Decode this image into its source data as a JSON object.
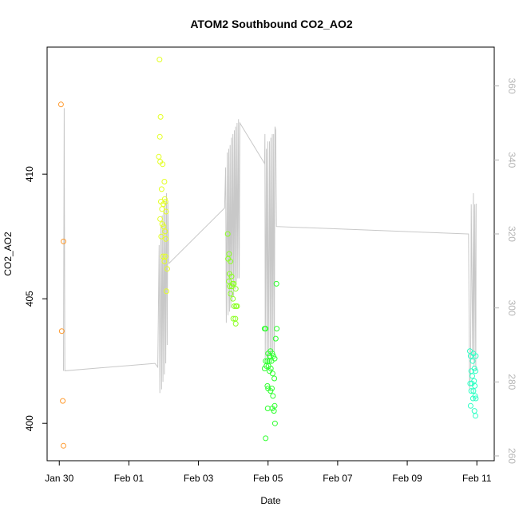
{
  "chart_data": {
    "type": "scatter",
    "title": "ATOM2 Southbound CO2_AO2",
    "xlabel": "Date",
    "ylabel": "CO2_AO2",
    "x_ticks": [
      "Jan 30",
      "Feb 01",
      "Feb 03",
      "Feb 05",
      "Feb 07",
      "Feb 09",
      "Feb 11"
    ],
    "x_tick_days": [
      0,
      2,
      4,
      6,
      8,
      10,
      12
    ],
    "xlim_days": [
      -0.35,
      12.5
    ],
    "ylim": [
      398.5,
      415.1
    ],
    "y_ticks": [
      400,
      405,
      410
    ],
    "y2_ticks": [
      260,
      280,
      300,
      320,
      340,
      360
    ],
    "y2lim": [
      258.7,
      370.5
    ],
    "grid": false,
    "legend": "none",
    "colors": {
      "line": "#c8c8c8",
      "right_axis": "#b5b5b5",
      "frame": "#000000"
    },
    "series": [
      {
        "color": "#ff9a2e",
        "points": [
          [
            0.05,
            412.8
          ],
          [
            0.12,
            407.3
          ],
          [
            0.07,
            403.7
          ],
          [
            0.1,
            400.9
          ],
          [
            0.12,
            399.1
          ]
        ]
      },
      {
        "color": "#e4ff24",
        "points": [
          [
            2.88,
            414.6
          ],
          [
            2.91,
            412.3
          ],
          [
            2.89,
            411.5
          ],
          [
            2.86,
            410.7
          ],
          [
            2.9,
            410.5
          ],
          [
            2.97,
            410.4
          ],
          [
            3.02,
            409.7
          ],
          [
            2.94,
            409.4
          ],
          [
            3.03,
            409.0
          ],
          [
            2.92,
            408.9
          ],
          [
            2.99,
            408.8
          ],
          [
            3.05,
            408.9
          ],
          [
            2.95,
            408.6
          ],
          [
            3.07,
            408.5
          ],
          [
            2.9,
            408.2
          ],
          [
            2.96,
            408.0
          ],
          [
            3.0,
            407.9
          ],
          [
            3.04,
            407.7
          ],
          [
            2.93,
            407.5
          ],
          [
            3.06,
            407.4
          ],
          [
            2.98,
            406.7
          ],
          [
            3.05,
            406.7
          ],
          [
            3.02,
            406.5
          ],
          [
            3.1,
            406.2
          ],
          [
            3.08,
            405.3
          ]
        ]
      },
      {
        "color": "#8cff24",
        "points": [
          [
            4.84,
            407.6
          ],
          [
            4.88,
            406.8
          ],
          [
            4.85,
            406.6
          ],
          [
            4.92,
            406.5
          ],
          [
            4.89,
            406.0
          ],
          [
            4.95,
            405.9
          ],
          [
            4.87,
            405.7
          ],
          [
            4.98,
            405.6
          ],
          [
            5.02,
            405.6
          ],
          [
            4.9,
            405.5
          ],
          [
            4.96,
            405.5
          ],
          [
            5.07,
            405.4
          ],
          [
            4.92,
            405.2
          ],
          [
            4.99,
            405.0
          ],
          [
            5.03,
            404.7
          ],
          [
            5.08,
            404.7
          ],
          [
            5.11,
            404.7
          ],
          [
            5.0,
            404.2
          ],
          [
            5.06,
            404.2
          ],
          [
            5.07,
            404.0
          ]
        ]
      },
      {
        "color": "#2eff2e",
        "points": [
          [
            5.9,
            403.8
          ],
          [
            5.93,
            403.8
          ],
          [
            6.24,
            405.6
          ],
          [
            6.25,
            403.8
          ],
          [
            6.22,
            403.4
          ],
          [
            6.0,
            402.8
          ],
          [
            6.07,
            402.9
          ],
          [
            6.12,
            402.8
          ],
          [
            6.05,
            402.7
          ],
          [
            6.15,
            402.7
          ],
          [
            6.19,
            402.6
          ],
          [
            5.93,
            402.5
          ],
          [
            5.98,
            402.5
          ],
          [
            6.03,
            402.5
          ],
          [
            6.1,
            402.5
          ],
          [
            5.95,
            402.3
          ],
          [
            6.01,
            402.3
          ],
          [
            5.9,
            402.2
          ],
          [
            6.08,
            402.2
          ],
          [
            6.04,
            402.1
          ],
          [
            6.13,
            402.0
          ],
          [
            6.18,
            401.8
          ],
          [
            5.98,
            401.5
          ],
          [
            6.0,
            401.4
          ],
          [
            6.11,
            401.4
          ],
          [
            6.07,
            401.3
          ],
          [
            6.14,
            401.1
          ],
          [
            6.19,
            400.7
          ],
          [
            5.99,
            400.6
          ],
          [
            6.17,
            400.5
          ],
          [
            6.12,
            400.6
          ],
          [
            6.2,
            400.0
          ],
          [
            5.93,
            399.4
          ]
        ]
      },
      {
        "color": "#2effc4",
        "points": [
          [
            11.8,
            402.9
          ],
          [
            11.9,
            402.8
          ],
          [
            11.82,
            402.7
          ],
          [
            11.97,
            402.7
          ],
          [
            11.88,
            402.5
          ],
          [
            11.93,
            402.2
          ],
          [
            11.84,
            402.1
          ],
          [
            11.96,
            402.1
          ],
          [
            11.87,
            401.9
          ],
          [
            11.92,
            401.7
          ],
          [
            11.81,
            401.6
          ],
          [
            11.86,
            401.6
          ],
          [
            11.94,
            401.5
          ],
          [
            11.84,
            401.3
          ],
          [
            11.9,
            401.3
          ],
          [
            11.95,
            401.1
          ],
          [
            11.89,
            401.0
          ],
          [
            11.97,
            401.0
          ],
          [
            11.82,
            400.7
          ],
          [
            11.93,
            400.5
          ],
          [
            11.96,
            400.3
          ]
        ]
      }
    ],
    "line_points": [
      [
        0.12,
        283
      ],
      [
        0.14,
        354
      ],
      [
        0.16,
        283
      ],
      [
        2.75,
        285
      ],
      [
        2.83,
        284
      ],
      [
        2.87,
        317
      ],
      [
        2.89,
        277
      ],
      [
        2.92,
        322
      ],
      [
        2.94,
        278
      ],
      [
        2.96,
        325
      ],
      [
        2.98,
        280
      ],
      [
        3.0,
        326
      ],
      [
        3.02,
        282
      ],
      [
        3.04,
        329
      ],
      [
        3.06,
        285
      ],
      [
        3.08,
        331
      ],
      [
        3.1,
        290
      ],
      [
        3.12,
        329
      ],
      [
        3.15,
        312
      ],
      [
        4.75,
        327
      ],
      [
        4.78,
        338
      ],
      [
        4.8,
        296
      ],
      [
        4.83,
        342
      ],
      [
        4.85,
        298
      ],
      [
        4.87,
        343
      ],
      [
        4.89,
        299
      ],
      [
        4.91,
        344
      ],
      [
        4.93,
        300
      ],
      [
        4.95,
        346
      ],
      [
        4.97,
        302
      ],
      [
        4.99,
        347
      ],
      [
        5.01,
        303
      ],
      [
        5.03,
        348
      ],
      [
        5.05,
        305
      ],
      [
        5.07,
        349
      ],
      [
        5.09,
        307
      ],
      [
        5.11,
        350
      ],
      [
        5.13,
        308
      ],
      [
        5.15,
        351
      ],
      [
        5.17,
        308
      ],
      [
        5.19,
        350
      ],
      [
        5.9,
        339
      ],
      [
        5.91,
        347
      ],
      [
        5.92,
        286
      ],
      [
        5.95,
        343
      ],
      [
        5.97,
        285
      ],
      [
        5.99,
        345
      ],
      [
        6.01,
        286
      ],
      [
        6.04,
        345
      ],
      [
        6.06,
        287
      ],
      [
        6.08,
        346
      ],
      [
        6.1,
        287
      ],
      [
        6.12,
        347
      ],
      [
        6.14,
        288
      ],
      [
        6.16,
        347
      ],
      [
        6.18,
        288
      ],
      [
        6.2,
        349
      ],
      [
        6.22,
        348
      ],
      [
        6.24,
        322
      ],
      [
        11.73,
        320
      ],
      [
        11.76,
        320
      ],
      [
        11.79,
        278
      ],
      [
        11.82,
        284
      ],
      [
        11.84,
        328
      ],
      [
        11.88,
        286
      ],
      [
        11.9,
        331
      ],
      [
        11.92,
        284
      ],
      [
        11.94,
        328
      ],
      [
        11.97,
        283
      ],
      [
        11.98,
        328
      ],
      [
        12.0,
        328
      ]
    ]
  }
}
